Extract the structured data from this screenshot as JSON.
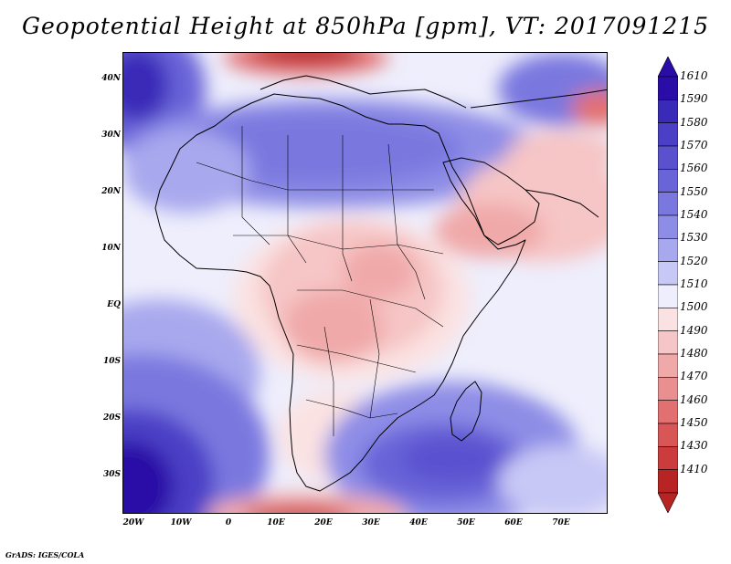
{
  "title": "Geopotential Height at 850hPa [gpm], VT: 2017091215",
  "footer": "GrADS: IGES/COLA",
  "variable": "Geopotential Height",
  "level": "850hPa",
  "units": "gpm",
  "valid_time": "2017091215",
  "axes": {
    "lat_labels": [
      "40N",
      "30N",
      "20N",
      "10N",
      "EQ",
      "10S",
      "20S",
      "30S"
    ],
    "lat_values": [
      40,
      30,
      20,
      10,
      0,
      -10,
      -20,
      -30
    ],
    "lon_labels": [
      "20W",
      "10W",
      "0",
      "10E",
      "20E",
      "30E",
      "40E",
      "50E",
      "60E",
      "70E"
    ],
    "lon_values": [
      -20,
      -10,
      0,
      10,
      20,
      30,
      40,
      50,
      60,
      70
    ],
    "lon_range": [
      -22,
      80
    ],
    "lat_range": [
      -37,
      45
    ]
  },
  "legend": {
    "levels": [
      "1610",
      "1590",
      "1580",
      "1570",
      "1560",
      "1550",
      "1540",
      "1530",
      "1520",
      "1510",
      "1500",
      "1490",
      "1480",
      "1470",
      "1460",
      "1450",
      "1430",
      "1410"
    ],
    "colors": [
      "#2a0ca6",
      "#3a2ab8",
      "#4b3fc6",
      "#5a51cf",
      "#6964d8",
      "#7a78df",
      "#8e8de6",
      "#a8a8ee",
      "#c8c8f6",
      "#eeeefc",
      "#fbe2e2",
      "#f6c5c5",
      "#f0a9a9",
      "#ea8f8f",
      "#e27070",
      "#d85656",
      "#cc3c3c",
      "#b82424"
    ]
  },
  "map_features": {
    "coastlines": "Africa, Arabian Peninsula, Mediterranean, Madagascar",
    "high_areas": "southern ocean, Sahara",
    "low_areas": "Mediterranean/Balkans, Arabia, central Africa, south of Cape"
  }
}
